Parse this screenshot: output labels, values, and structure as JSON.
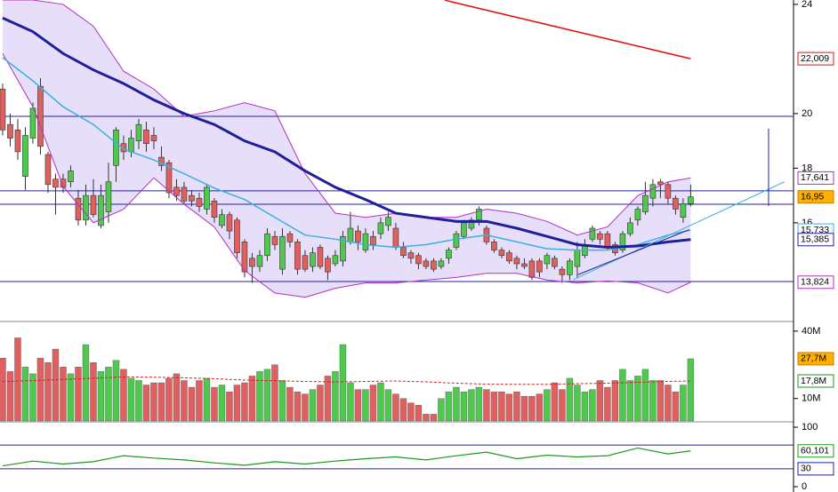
{
  "chart_data": [
    {
      "type": "candlestick",
      "xlim": [
        -0.35,
        104.6
      ],
      "ylim": [
        12.45,
        24.16
      ],
      "yticks": [
        16,
        18,
        20,
        24
      ],
      "up_color": "#4ec94e",
      "down_color": "#e06060",
      "ohlc": [
        [
          20.9,
          21.1,
          19.2,
          19.4
        ],
        [
          19.6,
          20,
          18.8,
          19.1
        ],
        [
          19.4,
          19.8,
          18.3,
          18.6
        ],
        [
          17.7,
          19.5,
          17.2,
          19.2
        ],
        [
          19.1,
          20.4,
          18.9,
          20.2
        ],
        [
          21,
          21.3,
          18.5,
          18.8
        ],
        [
          18.5,
          18.6,
          17.1,
          17.4
        ],
        [
          17.6,
          17.8,
          16.3,
          17.3
        ],
        [
          17.6,
          17.8,
          17.1,
          17.3
        ],
        [
          17.5,
          18.1,
          17.3,
          17.9
        ],
        [
          16.9,
          17.2,
          15.9,
          16.1
        ],
        [
          16.1,
          17.4,
          15.9,
          17
        ],
        [
          17,
          17.6,
          16.2,
          16.3
        ],
        [
          15.9,
          17.4,
          15.8,
          17
        ],
        [
          16.4,
          18.2,
          16,
          17.5
        ],
        [
          18.1,
          19.5,
          17.5,
          19.4
        ],
        [
          18.9,
          19.2,
          18.3,
          18.6
        ],
        [
          18.6,
          19.4,
          18.4,
          19.1
        ],
        [
          19,
          19.8,
          18.7,
          19.6
        ],
        [
          19.4,
          19.7,
          18.6,
          18.9
        ],
        [
          19.2,
          19.5,
          18.7,
          19
        ],
        [
          18.4,
          18.8,
          17.9,
          18.1
        ],
        [
          18.2,
          18.3,
          16.9,
          17.1
        ],
        [
          17.3,
          17.6,
          16.8,
          17
        ],
        [
          17.3,
          17.5,
          16.7,
          16.8
        ],
        [
          17,
          17.2,
          16.6,
          16.8
        ],
        [
          16.9,
          17.1,
          16.4,
          16.6
        ],
        [
          16.5,
          17.4,
          16.3,
          17.3
        ],
        [
          16.8,
          16.9,
          16,
          16.2
        ],
        [
          15.9,
          16.5,
          15.8,
          16.3
        ],
        [
          16.3,
          16.4,
          15.4,
          15.7
        ],
        [
          16.1,
          16.2,
          14.7,
          14.9
        ],
        [
          15.3,
          15.4,
          14,
          14.2
        ],
        [
          14.7,
          14.9,
          13.8,
          14.4
        ],
        [
          14.4,
          15,
          14.2,
          14.8
        ],
        [
          14.8,
          15.8,
          14.6,
          15.6
        ],
        [
          15.5,
          15.7,
          15,
          15.2
        ],
        [
          14.3,
          15.8,
          14.1,
          15.5
        ],
        [
          15.6,
          15.7,
          15.1,
          15.3
        ],
        [
          15.3,
          15.4,
          14.1,
          14.3
        ],
        [
          14.8,
          15,
          14.2,
          14.3
        ],
        [
          14.4,
          15.1,
          14.2,
          14.9
        ],
        [
          15.1,
          15.2,
          14.3,
          14.4
        ],
        [
          14.7,
          14.8,
          13.9,
          14.2
        ],
        [
          14.5,
          15,
          14.4,
          14.8
        ],
        [
          14.6,
          15.7,
          14.4,
          15.5
        ],
        [
          15.3,
          16.4,
          15.2,
          15.8
        ],
        [
          15.7,
          15.9,
          15,
          15.3
        ],
        [
          15,
          15.8,
          14.9,
          15.6
        ],
        [
          15.5,
          15.7,
          15,
          15.2
        ],
        [
          15.6,
          16.2,
          15.4,
          16
        ],
        [
          15.9,
          16.4,
          15.7,
          16.2
        ],
        [
          15.8,
          16,
          15,
          15.1
        ],
        [
          15.1,
          15.3,
          14.7,
          14.8
        ],
        [
          14.9,
          15,
          14.5,
          14.7
        ],
        [
          14.8,
          14.9,
          14.3,
          14.5
        ],
        [
          14.6,
          14.7,
          14.3,
          14.4
        ],
        [
          14.6,
          14.7,
          14.2,
          14.3
        ],
        [
          14.4,
          14.7,
          14.3,
          14.6
        ],
        [
          14.7,
          15.1,
          14.5,
          15
        ],
        [
          15.1,
          15.7,
          15,
          15.6
        ],
        [
          15.5,
          16.1,
          15.4,
          16
        ],
        [
          15.8,
          16.2,
          15.7,
          16.1
        ],
        [
          16.1,
          16.6,
          15.9,
          16.5
        ],
        [
          15.8,
          15.9,
          15.2,
          15.3
        ],
        [
          15.3,
          15.4,
          14.9,
          15
        ],
        [
          15,
          15.1,
          14.7,
          14.8
        ],
        [
          14.9,
          15,
          14.5,
          14.6
        ],
        [
          14.7,
          14.8,
          14.3,
          14.5
        ],
        [
          14.5,
          14.7,
          14.3,
          14.4
        ],
        [
          14.6,
          14.7,
          13.9,
          14
        ],
        [
          14.6,
          14.7,
          14,
          14.2
        ],
        [
          14.5,
          14.9,
          14.3,
          14.8
        ],
        [
          14.7,
          14.8,
          14.3,
          14.4
        ],
        [
          14.3,
          14.4,
          13.8,
          14.1
        ],
        [
          14.1,
          14.7,
          13.9,
          14.6
        ],
        [
          14.4,
          15.3,
          14,
          15
        ],
        [
          14.8,
          15.4,
          14.7,
          15.2
        ],
        [
          15.4,
          15.9,
          15.3,
          15.8
        ],
        [
          15.6,
          15.7,
          15.2,
          15.4
        ],
        [
          15.6,
          15.7,
          15,
          15.1
        ],
        [
          15.2,
          15.3,
          14.8,
          14.9
        ],
        [
          15,
          15.7,
          14.9,
          15.6
        ],
        [
          15.6,
          16.2,
          15.5,
          16
        ],
        [
          16.1,
          16.6,
          15.9,
          16.5
        ],
        [
          16.4,
          17.5,
          16.3,
          17
        ],
        [
          16.9,
          17.6,
          16.6,
          17.4
        ],
        [
          17.5,
          17.6,
          16.9,
          17.4
        ],
        [
          17.4,
          17.5,
          16.7,
          16.9
        ],
        [
          16.9,
          17,
          16.3,
          16.5
        ],
        [
          16.2,
          16.9,
          16,
          16.7
        ],
        [
          16.7,
          17.4,
          16.6,
          16.95
        ]
      ],
      "close_label": "16,95",
      "lines": [
        {
          "color": "#b030c0",
          "width": 1,
          "label": "17,641",
          "x": [
            0,
            4,
            8,
            12,
            16,
            20,
            24,
            28,
            32,
            36,
            40,
            44,
            48,
            52,
            56,
            60,
            64,
            68,
            72,
            76,
            80,
            84,
            88,
            91
          ],
          "values": [
            24.16,
            24.16,
            24,
            23.2,
            21.55,
            20.9,
            19.9,
            20.1,
            20.4,
            20.1,
            17.8,
            16.35,
            16.2,
            16.35,
            16.2,
            16.2,
            16.5,
            16.35,
            16.05,
            15.55,
            15.85,
            17,
            17.5,
            17.641
          ]
        },
        {
          "color": "#b030c0",
          "width": 1,
          "label": "13,824",
          "x": [
            0,
            4,
            8,
            12,
            16,
            20,
            24,
            28,
            32,
            36,
            40,
            44,
            48,
            52,
            56,
            60,
            64,
            68,
            72,
            76,
            80,
            84,
            88,
            91
          ],
          "values": [
            22.2,
            20.25,
            17.33,
            16,
            16.5,
            17.65,
            16.68,
            15.85,
            14.25,
            13.43,
            13.27,
            13.6,
            13.8,
            13.8,
            13.9,
            14,
            14.15,
            14.15,
            13.9,
            13.8,
            13.87,
            13.8,
            13.43,
            13.824
          ]
        },
        {
          "color": "#3ab0e0",
          "width": 1.5,
          "label": "15,733",
          "x": [
            0,
            4,
            8,
            12,
            16,
            20,
            24,
            28,
            32,
            36,
            40,
            44,
            48,
            52,
            56,
            60,
            64,
            68,
            72,
            76,
            80,
            84,
            88,
            91
          ],
          "values": [
            22.05,
            21.2,
            20.25,
            19.6,
            18.7,
            18.3,
            17.8,
            17.27,
            16.85,
            16.2,
            15.55,
            15.4,
            15.2,
            15.1,
            15.2,
            15.4,
            15.55,
            15.3,
            15.05,
            15,
            15,
            15.2,
            15.55,
            15.733
          ]
        },
        {
          "color": "#1f1f9a",
          "width": 3,
          "label": "15,385",
          "x": [
            0,
            4,
            8,
            12,
            16,
            20,
            24,
            28,
            32,
            36,
            40,
            44,
            48,
            52,
            56,
            60,
            64,
            68,
            72,
            76,
            80,
            84,
            88,
            91
          ],
          "values": [
            23.5,
            23,
            22.2,
            21.6,
            21.1,
            20.5,
            20,
            19.6,
            19,
            18.6,
            17.9,
            17.3,
            16.85,
            16.35,
            16.2,
            16.05,
            16.05,
            15.8,
            15.5,
            15.2,
            15.1,
            15.15,
            15.3,
            15.385
          ]
        },
        {
          "color": "#e01010",
          "width": 1.5,
          "label": "22,009",
          "x": [
            58.5,
            91
          ],
          "values": [
            24.15,
            22.009
          ]
        }
      ],
      "hlines": [
        19.9,
        17.17,
        16.68,
        13.85
      ],
      "trendlines": [
        {
          "color": "#3ab0e0",
          "x": [
            75.5,
            103.4
          ],
          "values": [
            13.92,
            17.5
          ]
        },
        {
          "color": "#2020a0",
          "x": [
            76.1,
            90.8
          ],
          "values": [
            14.1,
            15.75
          ]
        },
        {
          "color": "#2020a0",
          "x": [
            101.3,
            101.3
          ],
          "values": [
            19.45,
            16.62
          ]
        }
      ]
    },
    {
      "type": "bar",
      "xlim": [
        -0.35,
        104.6
      ],
      "ylim": [
        0,
        43.5
      ],
      "yticks": [
        {
          "value": 10,
          "label": "10M"
        },
        {
          "value": 40,
          "label": "40M"
        }
      ],
      "values": [
        28,
        22,
        37,
        24,
        21,
        28,
        26,
        32,
        24,
        21,
        24,
        34,
        26,
        22,
        24,
        27,
        23,
        19,
        18,
        16,
        17,
        17,
        19,
        21,
        18,
        15,
        18,
        19,
        15,
        16,
        13,
        16,
        17,
        20,
        22,
        23,
        25,
        18,
        15,
        13,
        12,
        14,
        16,
        20,
        22,
        34,
        17,
        14,
        14,
        16,
        17,
        14,
        12,
        10,
        8,
        7,
        3,
        3,
        10,
        13,
        15,
        13,
        14,
        15,
        14,
        13,
        13,
        12,
        13,
        11,
        11,
        12,
        14,
        17,
        14,
        19,
        16,
        13,
        14,
        18,
        15,
        18,
        23,
        18,
        20,
        23,
        18,
        18,
        16,
        13,
        16,
        27.7
      ],
      "last_label": "27,7M",
      "ma": {
        "color": "#d02020",
        "label": "17,8M",
        "x": [
          0,
          4,
          8,
          12,
          16,
          20,
          24,
          28,
          32,
          36,
          40,
          44,
          48,
          52,
          56,
          60,
          64,
          68,
          72,
          76,
          80,
          84,
          88,
          91
        ],
        "values": [
          17.5,
          18,
          18.5,
          19,
          19.6,
          19.5,
          19.2,
          18.8,
          18.2,
          17.9,
          17.6,
          17.4,
          17.6,
          17.8,
          17.4,
          16.8,
          16.4,
          16.3,
          16.3,
          16.6,
          16.8,
          17.2,
          17.6,
          17.8
        ]
      }
    },
    {
      "type": "line",
      "xlim": [
        -0.35,
        104.6
      ],
      "ylim": [
        -9,
        107.5
      ],
      "yticks": [
        0,
        100
      ],
      "hlines": [
        70,
        30
      ],
      "hline_label": "30",
      "series": [
        {
          "color": "#1a9a1a",
          "label": "60,101",
          "x": [
            0,
            4,
            8,
            12,
            16,
            20,
            24,
            28,
            32,
            36,
            40,
            44,
            48,
            52,
            56,
            60,
            64,
            68,
            72,
            76,
            80,
            84,
            88,
            91
          ],
          "values": [
            35,
            43,
            38,
            42,
            52,
            48,
            45,
            40,
            36,
            42,
            38,
            43,
            47,
            50,
            45,
            52,
            58,
            47,
            53,
            50,
            52,
            65,
            55,
            60.101
          ]
        }
      ]
    }
  ]
}
